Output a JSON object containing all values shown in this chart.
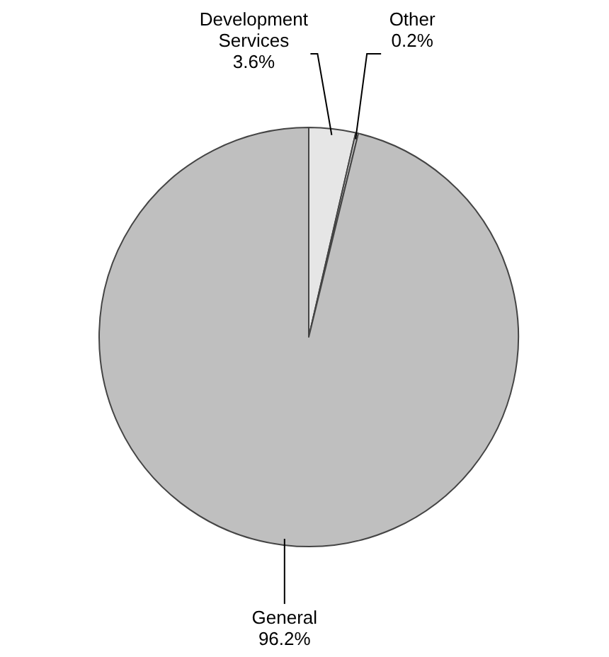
{
  "chart_data": {
    "type": "pie",
    "categories": [
      "Development Services",
      "Other",
      "General"
    ],
    "values": [
      3.6,
      0.2,
      96.2
    ],
    "colors": [
      "#e6e6e6",
      "#d4d4d4",
      "#bfbfbf"
    ],
    "value_labels": [
      "3.6%",
      "0.2%",
      "96.2%"
    ]
  }
}
